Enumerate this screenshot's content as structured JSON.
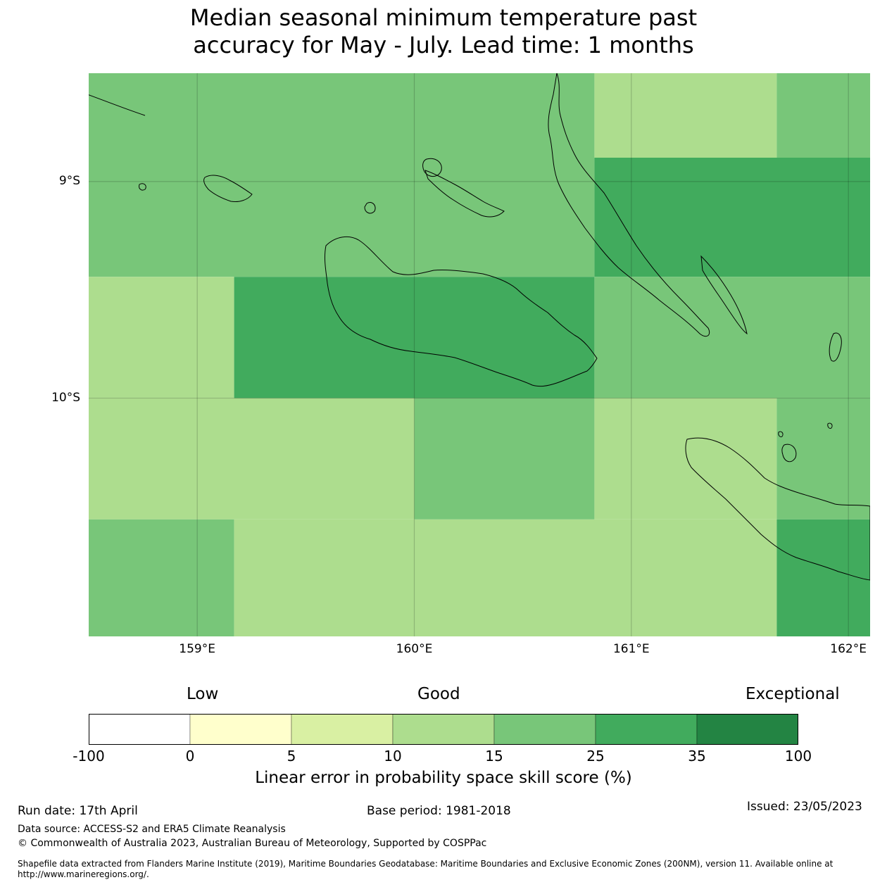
{
  "title_lines": [
    "Median seasonal minimum temperature past",
    "accuracy for May - July. Lead time: 1 months"
  ],
  "map": {
    "lon_range": [
      158.5,
      162.1
    ],
    "lat_range": [
      -8.5,
      -11.1
    ],
    "lat_ticks": [
      {
        "value": -9,
        "label": "9°S"
      },
      {
        "value": -10,
        "label": "10°S"
      }
    ],
    "lon_ticks": [
      {
        "value": 159,
        "label": "159°E"
      },
      {
        "value": 160,
        "label": "160°E"
      },
      {
        "value": 161,
        "label": "161°E"
      },
      {
        "value": 162,
        "label": "162°E"
      }
    ],
    "cells": [
      {
        "lon0": 158.5,
        "lon1": 160.83,
        "lat0": -8.5,
        "lat1": -9.44,
        "cls": 25
      },
      {
        "lon0": 160.83,
        "lon1": 161.67,
        "lat0": -8.5,
        "lat1": -8.89,
        "cls": 15
      },
      {
        "lon0": 161.67,
        "lon1": 162.1,
        "lat0": -8.5,
        "lat1": -8.89,
        "cls": 25
      },
      {
        "lon0": 160.83,
        "lon1": 162.1,
        "lat0": -8.89,
        "lat1": -9.44,
        "cls": 35
      },
      {
        "lon0": 158.5,
        "lon1": 159.17,
        "lat0": -9.44,
        "lat1": -10.0,
        "cls": 15
      },
      {
        "lon0": 159.17,
        "lon1": 160.83,
        "lat0": -9.44,
        "lat1": -10.0,
        "cls": 35
      },
      {
        "lon0": 160.83,
        "lon1": 162.1,
        "lat0": -9.44,
        "lat1": -10.0,
        "cls": 25
      },
      {
        "lon0": 158.5,
        "lon1": 160.0,
        "lat0": -10.0,
        "lat1": -10.56,
        "cls": 15
      },
      {
        "lon0": 160.0,
        "lon1": 160.83,
        "lat0": -10.0,
        "lat1": -10.56,
        "cls": 25
      },
      {
        "lon0": 160.83,
        "lon1": 161.67,
        "lat0": -10.0,
        "lat1": -10.56,
        "cls": 15
      },
      {
        "lon0": 161.67,
        "lon1": 162.1,
        "lat0": -10.0,
        "lat1": -10.56,
        "cls": 25
      },
      {
        "lon0": 158.5,
        "lon1": 159.17,
        "lat0": -10.56,
        "lat1": -11.1,
        "cls": 25
      },
      {
        "lon0": 159.17,
        "lon1": 161.67,
        "lat0": -10.56,
        "lat1": -11.1,
        "cls": 15
      },
      {
        "lon0": 161.67,
        "lon1": 162.1,
        "lat0": -10.56,
        "lat1": -11.1,
        "cls": 35
      }
    ]
  },
  "legend": {
    "categories": [
      {
        "label": "Low"
      },
      {
        "label": "Good"
      },
      {
        "label": "Exceptional"
      }
    ],
    "bins": [
      {
        "from": -100,
        "to": 0,
        "color": "#ffffff"
      },
      {
        "from": 0,
        "to": 5,
        "color": "#ffffcc"
      },
      {
        "from": 5,
        "to": 10,
        "color": "#d9f0a3"
      },
      {
        "from": 10,
        "to": 15,
        "color": "#addd8e"
      },
      {
        "from": 15,
        "to": 25,
        "color": "#78c679"
      },
      {
        "from": 25,
        "to": 35,
        "color": "#41ab5d"
      },
      {
        "from": 35,
        "to": 100,
        "color": "#238443"
      }
    ],
    "tick_labels": [
      "-100",
      "0",
      "5",
      "10",
      "15",
      "25",
      "35",
      "100"
    ],
    "title": "Linear error in probability space skill score (%)"
  },
  "footer": {
    "run_date": "Run date: 17th April",
    "base_period": "Base period: 1981-2018",
    "issued": "Issued: 23/05/2023",
    "data_source": "Data source: ACCESS-S2 and ERA5 Climate Reanalysis",
    "copyright": "© Commonwealth of Australia 2023, Australian Bureau of Meteorology, Supported by COSPPac",
    "shapefile_line1": "Shapefile data extracted from Flanders Marine Institute (2019), Maritime Boundaries Geodatabase: Maritime Boundaries and Exclusive Economic Zones (200NM), version 11. Available online at",
    "shapefile_line2": "http://www.marineregions.org/."
  }
}
